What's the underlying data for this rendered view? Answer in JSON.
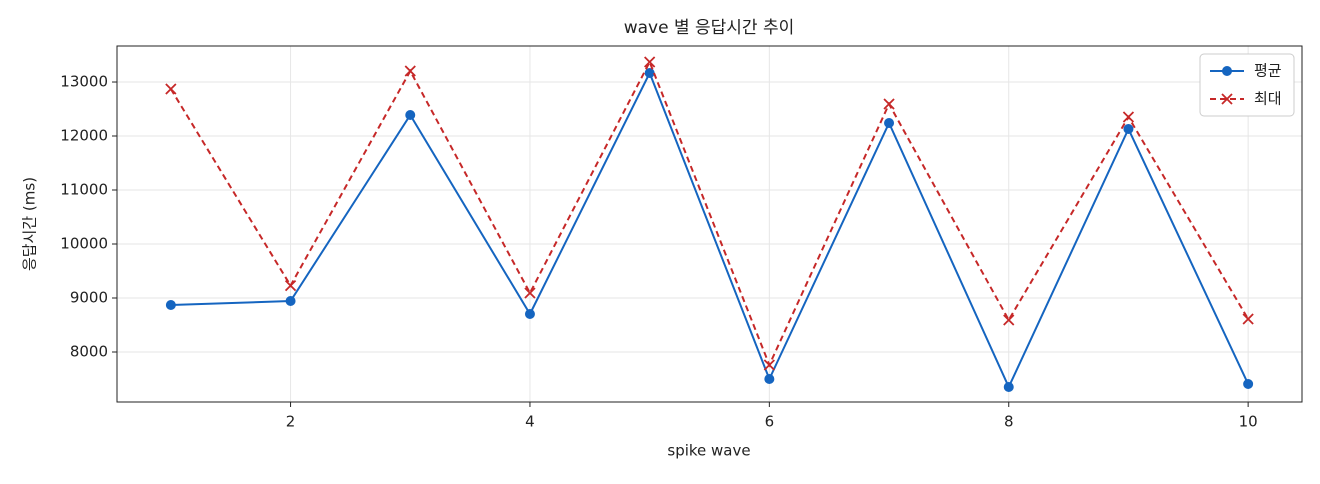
{
  "chart_data": {
    "type": "line",
    "title": "wave 별 응답시간 추이",
    "x_label": "spike wave",
    "y_label": "응답시간 (ms)",
    "x": [
      1,
      2,
      3,
      4,
      5,
      6,
      7,
      8,
      9,
      10
    ],
    "series": [
      {
        "name": "평균",
        "color": "#1565c0",
        "marker": "o",
        "dash": false,
        "values": [
          8870,
          8944,
          12389,
          8704,
          13167,
          7500,
          12241,
          7352,
          12130,
          7407
        ]
      },
      {
        "name": "최대",
        "color": "#c62828",
        "marker": "x",
        "dash": true,
        "values": [
          12870,
          9230,
          13204,
          9093,
          13370,
          7760,
          12593,
          8593,
          12352,
          8611
        ]
      }
    ],
    "xlim": [
      0.55,
      10.45
    ],
    "xticks": [
      2,
      4,
      6,
      8,
      10
    ],
    "ylim": [
      7074,
      13667
    ],
    "yticks": [
      8000,
      9000,
      10000,
      11000,
      12000,
      13000
    ],
    "grid": true,
    "legend": "upper right"
  }
}
